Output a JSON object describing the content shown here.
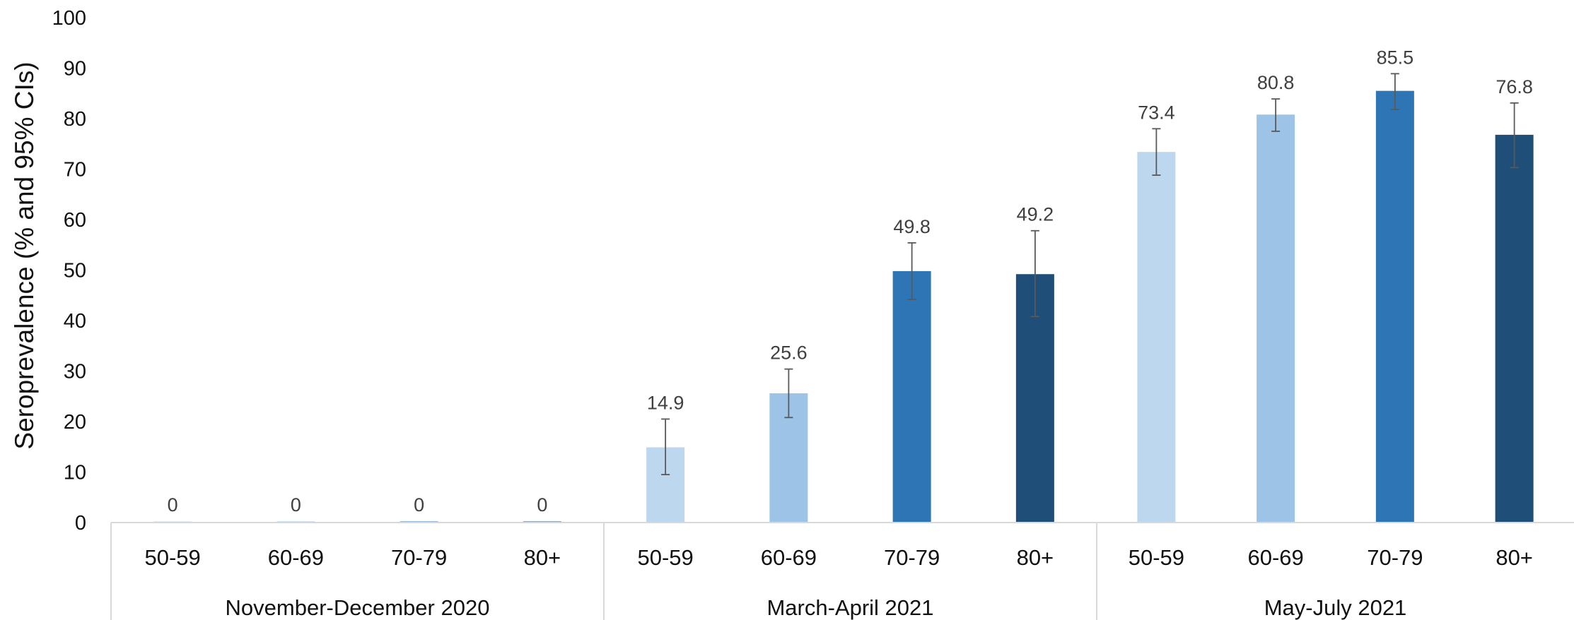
{
  "chart_data": {
    "type": "bar",
    "title": "",
    "ylabel": "Seroprevalence (% and 95% CIs)",
    "ylim": [
      0,
      100
    ],
    "yticks": [
      0,
      10,
      20,
      30,
      40,
      50,
      60,
      70,
      80,
      90,
      100
    ],
    "grid": false,
    "legend": "none",
    "groups": [
      {
        "label": "November-December 2020",
        "bars": [
          {
            "category": "50-59",
            "value": 0,
            "label": "0",
            "ci": [
              0,
              0
            ],
            "color": "#bdd7ee"
          },
          {
            "category": "60-69",
            "value": 0,
            "label": "0",
            "ci": [
              0,
              0
            ],
            "color": "#9dc3e6"
          },
          {
            "category": "70-79",
            "value": 0,
            "label": "0",
            "ci": [
              0,
              0
            ],
            "color": "#2e75b6"
          },
          {
            "category": "80+",
            "value": 0,
            "label": "0",
            "ci": [
              0,
              0
            ],
            "color": "#1f4e79"
          }
        ]
      },
      {
        "label": "March-April 2021",
        "bars": [
          {
            "category": "50-59",
            "value": 14.9,
            "label": "14.9",
            "ci": [
              9.5,
              20.5
            ],
            "color": "#bdd7ee"
          },
          {
            "category": "60-69",
            "value": 25.6,
            "label": "25.6",
            "ci": [
              20.8,
              30.4
            ],
            "color": "#9dc3e6"
          },
          {
            "category": "70-79",
            "value": 49.8,
            "label": "49.8",
            "ci": [
              44.2,
              55.4
            ],
            "color": "#2e75b6"
          },
          {
            "category": "80+",
            "value": 49.2,
            "label": "49.2",
            "ci": [
              40.8,
              57.8
            ],
            "color": "#1f4e79"
          }
        ]
      },
      {
        "label": "May-July 2021",
        "bars": [
          {
            "category": "50-59",
            "value": 73.4,
            "label": "73.4",
            "ci": [
              68.8,
              78.0
            ],
            "color": "#bdd7ee"
          },
          {
            "category": "60-69",
            "value": 80.8,
            "label": "80.8",
            "ci": [
              77.5,
              83.9
            ],
            "color": "#9dc3e6"
          },
          {
            "category": "70-79",
            "value": 85.5,
            "label": "85.5",
            "ci": [
              81.8,
              88.9
            ],
            "color": "#2e75b6"
          },
          {
            "category": "80+",
            "value": 76.8,
            "label": "76.8",
            "ci": [
              70.3,
              83.1
            ],
            "color": "#1f4e79"
          }
        ]
      }
    ]
  }
}
